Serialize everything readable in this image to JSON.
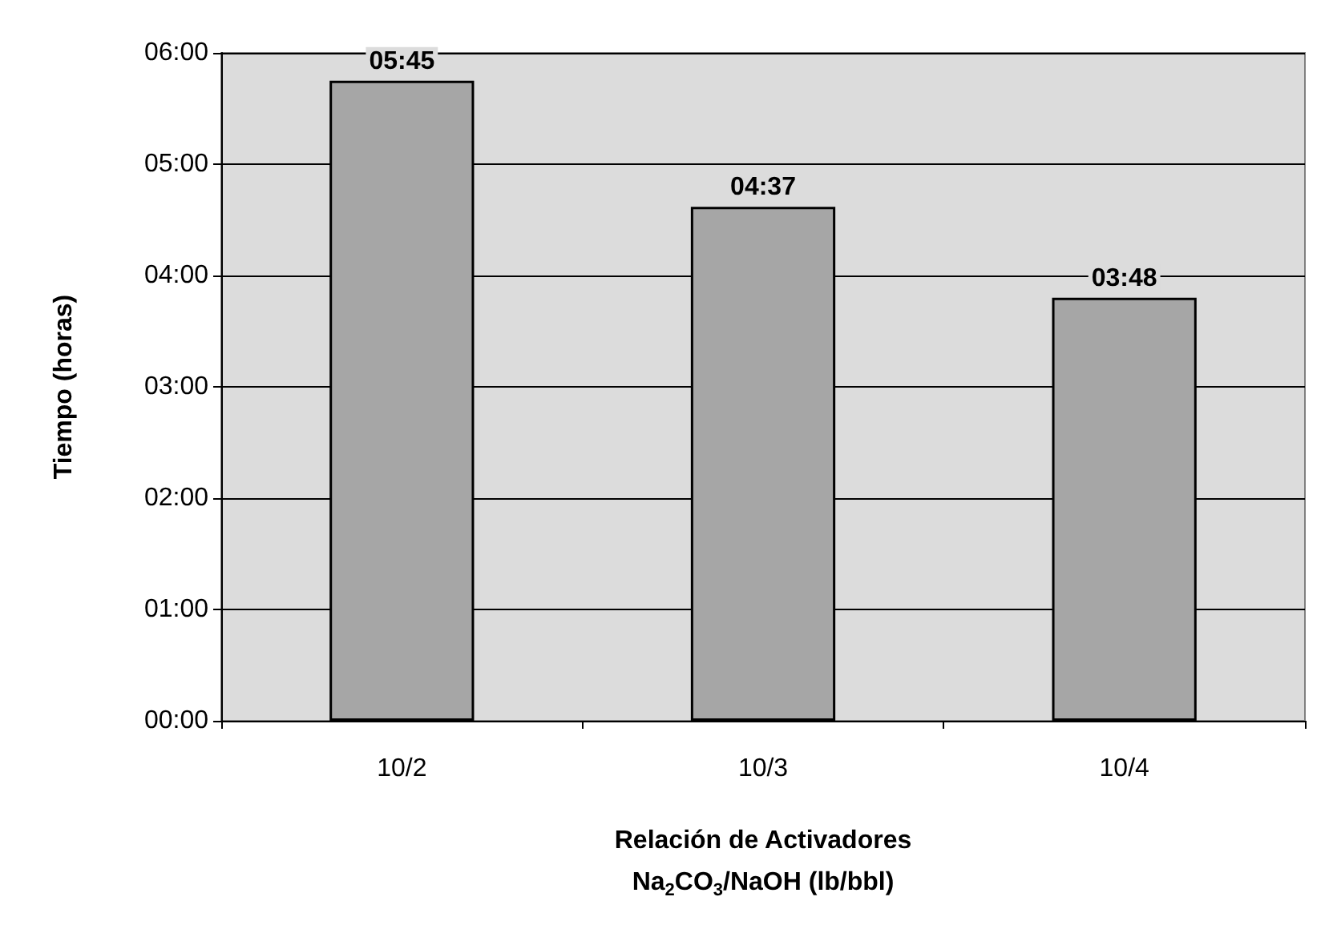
{
  "chart_data": {
    "type": "bar",
    "xlabel": "Relación de Activadores\nNa$_{2}$CO$_{3}$/NaOH (lb/bbl)",
    "ylabel": "Tiempo (horas)",
    "categories": [
      "10/2",
      "10/3",
      "10/4"
    ],
    "values": [
      5.75,
      4.6167,
      3.8
    ],
    "value_labels": [
      "05:45",
      "04:37",
      "03:48"
    ],
    "color": "#a6a6a6",
    "ylim": [
      0,
      6
    ],
    "yticks": [
      {
        "value": 0,
        "label": "00:00"
      },
      {
        "value": 1,
        "label": "01:00"
      },
      {
        "value": 2,
        "label": "02:00"
      },
      {
        "value": 3,
        "label": "03:00"
      },
      {
        "value": 4,
        "label": "04:00"
      },
      {
        "value": 5,
        "label": "05:00"
      },
      {
        "value": 6,
        "label": "06:00"
      }
    ],
    "grid": "y"
  }
}
